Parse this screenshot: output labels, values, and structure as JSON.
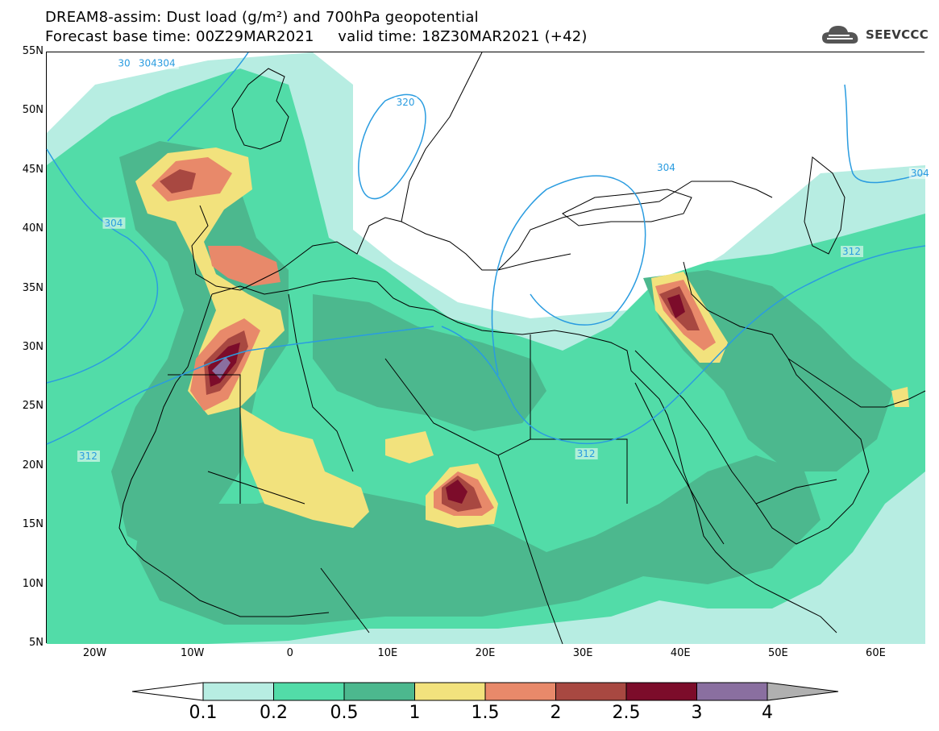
{
  "header": {
    "title_line_1": "DREAM8-assim: Dust load (g/m²) and 700hPa geopotential",
    "title_line_2": "Forecast base time: 00Z29MAR2021     valid time: 18Z30MAR2021 (+42)"
  },
  "logo": {
    "text": "SEEVCCC",
    "icon": "cloud-logo-icon"
  },
  "map": {
    "lon_range": [
      -25,
      65
    ],
    "lat_range": [
      5,
      55
    ],
    "lat_labels": [
      "55N",
      "50N",
      "45N",
      "40N",
      "35N",
      "30N",
      "25N",
      "20N",
      "15N",
      "10N",
      "5N"
    ],
    "lon_labels": [
      "20W",
      "10W",
      "0",
      "10E",
      "20E",
      "30E",
      "40E",
      "50E",
      "60E"
    ],
    "contour_labels": [
      {
        "text": "30",
        "lon": -17.7,
        "lat": 53.8
      },
      {
        "text": "304304",
        "lon": -15.6,
        "lat": 53.8
      },
      {
        "text": "320",
        "lon": 10.8,
        "lat": 50.5
      },
      {
        "text": "304",
        "lon": -19.1,
        "lat": 40.3
      },
      {
        "text": "304",
        "lon": 37.5,
        "lat": 45.0
      },
      {
        "text": "304",
        "lon": 63.5,
        "lat": 44.5
      },
      {
        "text": "312",
        "lon": 56.5,
        "lat": 37.9
      },
      {
        "text": "312",
        "lon": -21.7,
        "lat": 20.6
      },
      {
        "text": "312",
        "lon": 29.3,
        "lat": 20.8
      }
    ]
  },
  "colorbar": {
    "labels": [
      "0.1",
      "0.2",
      "0.5",
      "1",
      "1.5",
      "2",
      "2.5",
      "3",
      "4"
    ],
    "colors": [
      "#b7ede2",
      "#52dca8",
      "#4cb88e",
      "#f2e27d",
      "#e8896a",
      "#a84841",
      "#7c0c2a",
      "#8a6fa0",
      "#b0b0b0"
    ]
  },
  "colors": {
    "contour": "#2a9ce0",
    "coast": "#000000"
  }
}
